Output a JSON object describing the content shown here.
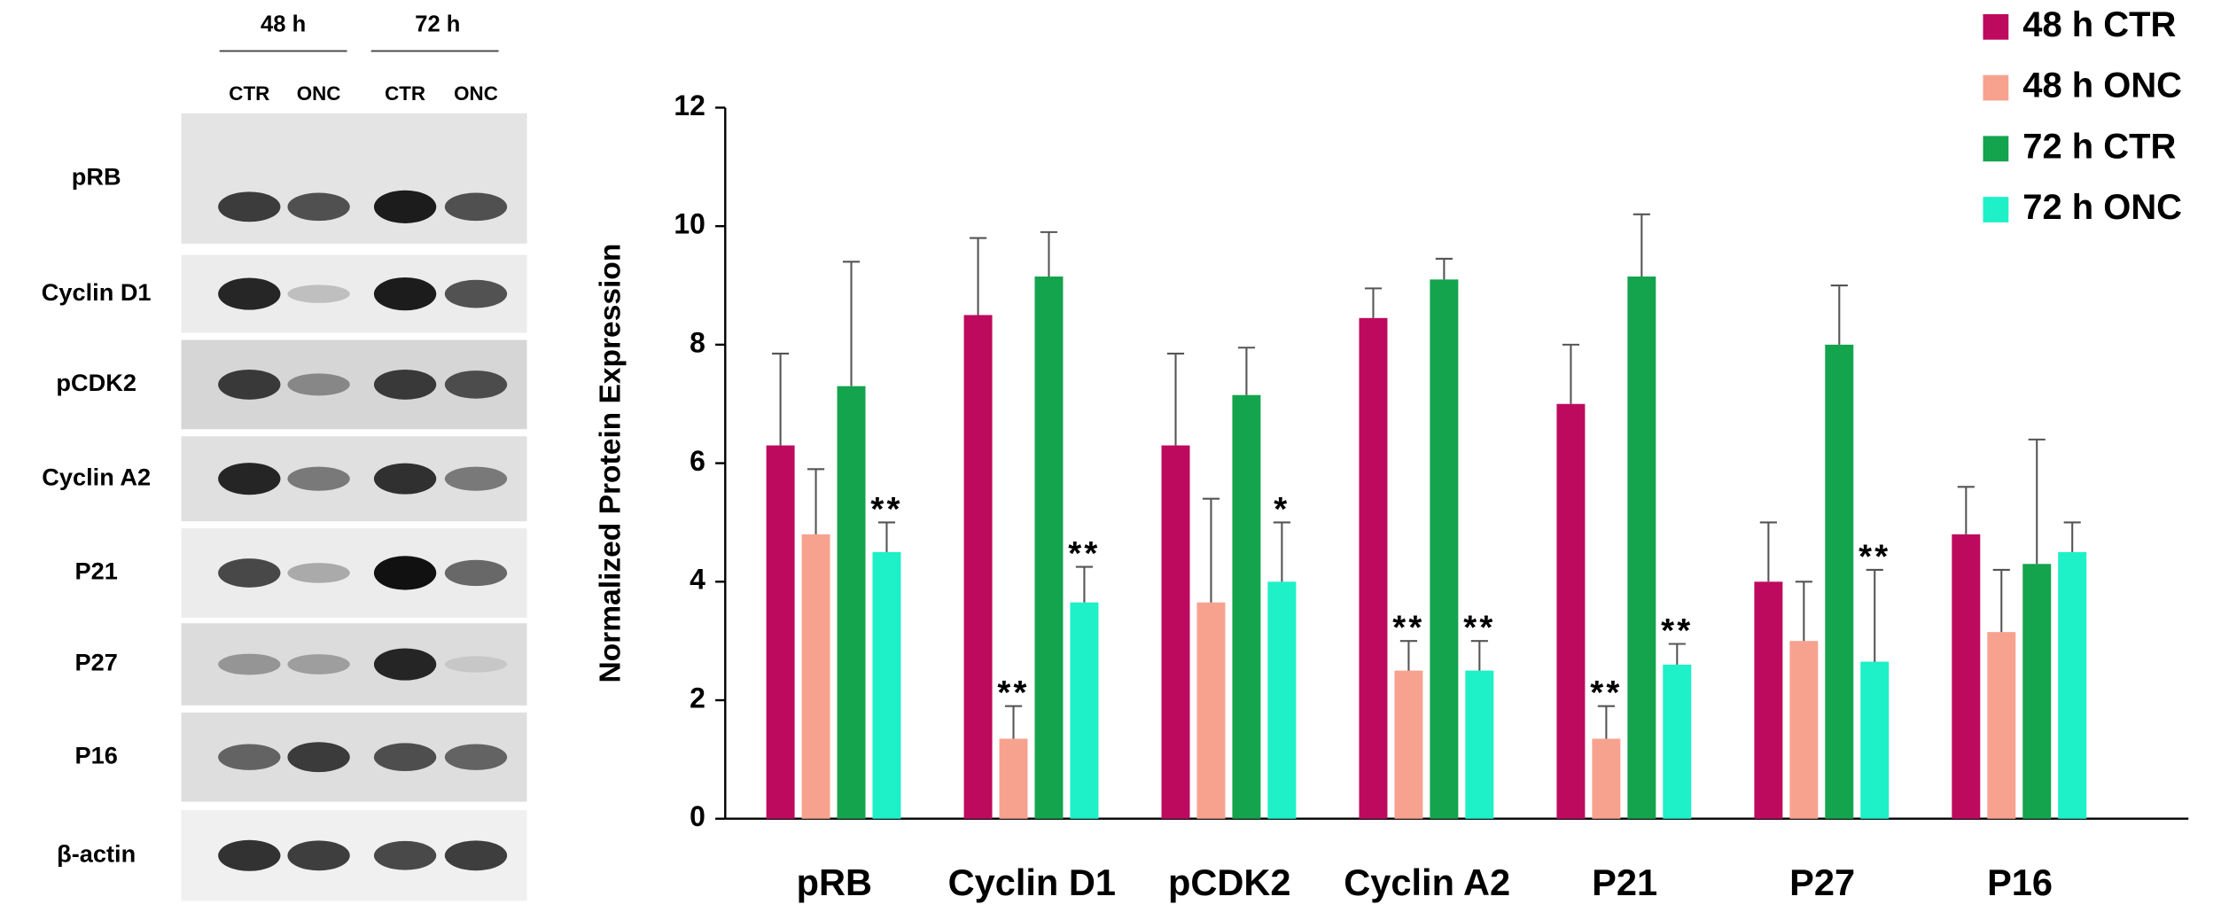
{
  "blot": {
    "time_labels": [
      "48 h",
      "72 h"
    ],
    "lane_labels": [
      "CTR",
      "ONC",
      "CTR",
      "ONC"
    ],
    "proteins": [
      "pRB",
      "Cyclin D1",
      "pCDK2",
      "Cyclin A2",
      "P21",
      "P27",
      "P16",
      "β-actin"
    ]
  },
  "chart_data": {
    "type": "bar",
    "ylabel": "Normalized Protein Expression",
    "categories": [
      "pRB",
      "Cyclin D1",
      "pCDK2",
      "Cyclin A2",
      "P21",
      "P27",
      "P16"
    ],
    "series": [
      {
        "name": "48 h CTR",
        "color": "#be0a5e",
        "values": [
          6.3,
          8.5,
          6.3,
          8.45,
          7.0,
          4.0,
          4.8
        ],
        "errors": [
          1.55,
          1.3,
          1.55,
          0.5,
          1.0,
          1.0,
          0.8
        ],
        "labels": [
          null,
          null,
          null,
          null,
          null,
          null,
          null
        ]
      },
      {
        "name": "48 h ONC",
        "color": "#f7a28f",
        "values": [
          4.8,
          1.35,
          3.65,
          2.5,
          1.35,
          3.0,
          3.15
        ],
        "errors": [
          1.1,
          0.55,
          1.75,
          0.5,
          0.55,
          1.0,
          1.05
        ],
        "labels": [
          null,
          "**",
          null,
          "**",
          "**",
          null,
          null
        ]
      },
      {
        "name": "72 h CTR",
        "color": "#13a44d",
        "values": [
          7.3,
          9.15,
          7.15,
          9.1,
          9.15,
          8.0,
          4.3
        ],
        "errors": [
          2.1,
          0.75,
          0.8,
          0.35,
          1.05,
          1.0,
          2.1
        ],
        "labels": [
          null,
          null,
          null,
          null,
          null,
          null,
          null
        ]
      },
      {
        "name": "72 h ONC",
        "color": "#1ef0c8",
        "values": [
          4.5,
          3.65,
          4.0,
          2.5,
          2.6,
          2.65,
          4.5
        ],
        "errors": [
          0.5,
          0.6,
          1.0,
          0.5,
          0.35,
          1.55,
          0.5
        ],
        "labels": [
          "**",
          "**",
          "*",
          "**",
          "**",
          "**",
          null
        ]
      }
    ],
    "ylim": [
      0,
      12
    ],
    "yticks": [
      0,
      2,
      4,
      6,
      8,
      10,
      12
    ],
    "grid": false,
    "legend": "top-right"
  }
}
